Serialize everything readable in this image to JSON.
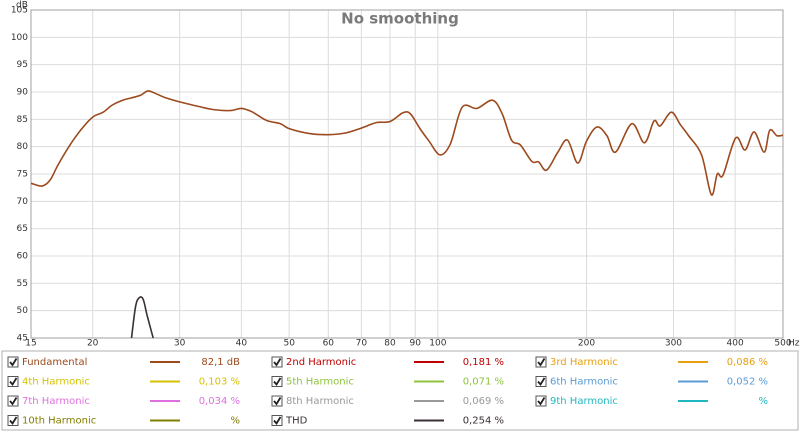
{
  "chart_data": {
    "type": "line",
    "title": "No smoothing",
    "y_label": "dB",
    "x_label": "Hz",
    "xscale": "log",
    "xlim": [
      15,
      500
    ],
    "ylim": [
      45,
      105
    ],
    "xticks": [
      15,
      20,
      30,
      40,
      50,
      60,
      70,
      80,
      90,
      100,
      200,
      300,
      400,
      500
    ],
    "yticks": [
      45,
      50,
      55,
      60,
      65,
      70,
      75,
      80,
      85,
      90,
      95,
      100,
      105
    ],
    "grid": true,
    "series": [
      {
        "name": "Fundamental",
        "color": "#9c4a1e",
        "readout": "82,1 dB",
        "x": [
          15,
          15.8,
          16.4,
          17,
          17.9,
          18.9,
          20,
          21,
          21.9,
          23,
          23.9,
          25,
          25.9,
          27,
          28,
          30,
          33,
          35,
          38,
          40,
          42,
          45,
          48,
          50,
          55,
          60,
          65,
          70,
          75,
          80,
          85,
          88,
          92,
          96,
          101,
          106,
          112,
          120,
          129,
          135,
          141,
          147,
          155,
          160,
          166,
          175,
          183,
          192,
          200,
          210,
          220,
          229,
          247,
          262,
          274,
          282,
          297,
          310,
          322,
          342,
          358,
          368,
          378,
          401,
          419,
          437,
          458,
          470,
          486,
          500
        ],
        "values": [
          73.3,
          72.8,
          73.9,
          76.6,
          80,
          83,
          85.4,
          86.3,
          87.6,
          88.5,
          88.9,
          89.4,
          90.2,
          89.6,
          89,
          88.2,
          87.3,
          86.8,
          86.6,
          87,
          86.4,
          84.8,
          84.2,
          83.3,
          82.4,
          82.2,
          82.5,
          83.4,
          84.4,
          84.6,
          86.2,
          86,
          83.3,
          81,
          78.5,
          80.5,
          87.2,
          87,
          88.5,
          86,
          81.2,
          80.3,
          77.3,
          77.2,
          75.7,
          79,
          81.2,
          77,
          81,
          83.6,
          82,
          79,
          84.2,
          80.7,
          84.7,
          83.8,
          86.3,
          84,
          82,
          78.5,
          71.2,
          75,
          74.8,
          81.6,
          79.4,
          82.7,
          79,
          83,
          82,
          82.1
        ]
      },
      {
        "name": "2nd Harmonic",
        "color": "#c00000",
        "readout": "0,181 %",
        "x": [],
        "values": []
      },
      {
        "name": "3rd Harmonic",
        "color": "#e8a010",
        "readout": "0,086 %",
        "x": [],
        "values": []
      },
      {
        "name": "4th Harmonic",
        "color": "#d4c200",
        "readout": "0,103 %",
        "x": [],
        "values": []
      },
      {
        "name": "5th Harmonic",
        "color": "#8cc43c",
        "readout": "0,071 %",
        "x": [],
        "values": []
      },
      {
        "name": "6th Harmonic",
        "color": "#5b9bd5",
        "readout": "0,052 %",
        "x": [],
        "values": []
      },
      {
        "name": "7th Harmonic",
        "color": "#e070e0",
        "readout": "0,034 %",
        "x": [],
        "values": []
      },
      {
        "name": "8th Harmonic",
        "color": "#999999",
        "readout": "0,069 %",
        "x": [],
        "values": []
      },
      {
        "name": "9th Harmonic",
        "color": "#20b8c0",
        "readout": "%",
        "x": [],
        "values": []
      },
      {
        "name": "10th Harmonic",
        "color": "#808000",
        "readout": "%",
        "x": [],
        "values": []
      },
      {
        "name": "THD",
        "color": "#3a3038",
        "readout": "0,254 %",
        "x": [
          23.9,
          24.4,
          24.8,
          25.3,
          25.8,
          26.7
        ],
        "values": [
          44,
          50.5,
          52.3,
          52.1,
          49,
          44
        ]
      }
    ]
  }
}
